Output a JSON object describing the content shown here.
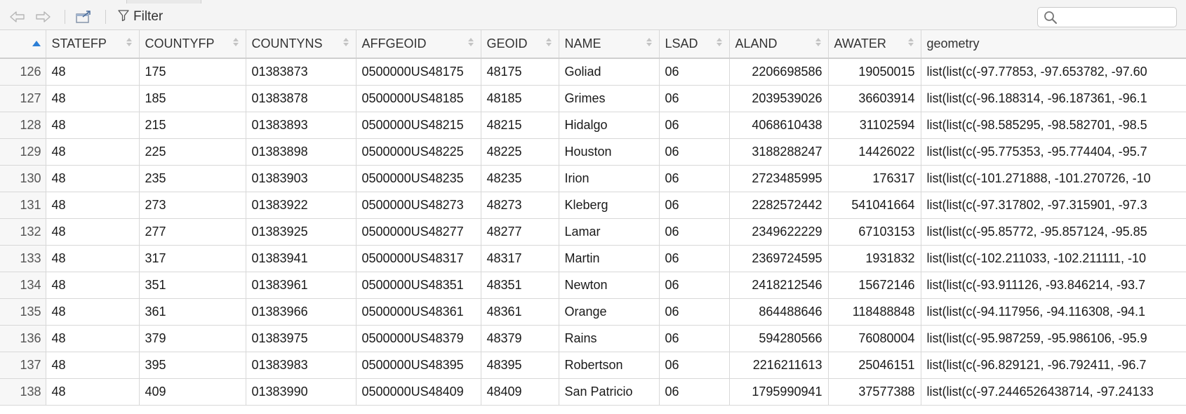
{
  "toolbar": {
    "back_icon": "arrow-left-icon",
    "forward_icon": "arrow-right-icon",
    "popout_icon": "popout-window-icon",
    "filter_label": "Filter",
    "search_placeholder": ""
  },
  "table": {
    "columns": [
      "STATEFP",
      "COUNTYFP",
      "COUNTYNS",
      "AFFGEOID",
      "GEOID",
      "NAME",
      "LSAD",
      "ALAND",
      "AWATER",
      "geometry"
    ],
    "rows": [
      [
        "126",
        "48",
        "175",
        "01383873",
        "0500000US48175",
        "48175",
        "Goliad",
        "06",
        "2206698586",
        "19050015",
        "list(list(c(-97.77853, -97.653782, -97.60"
      ],
      [
        "127",
        "48",
        "185",
        "01383878",
        "0500000US48185",
        "48185",
        "Grimes",
        "06",
        "2039539026",
        "36603914",
        "list(list(c(-96.188314, -96.187361, -96.1"
      ],
      [
        "128",
        "48",
        "215",
        "01383893",
        "0500000US48215",
        "48215",
        "Hidalgo",
        "06",
        "4068610438",
        "31102594",
        "list(list(c(-98.585295, -98.582701, -98.5"
      ],
      [
        "129",
        "48",
        "225",
        "01383898",
        "0500000US48225",
        "48225",
        "Houston",
        "06",
        "3188288247",
        "14426022",
        "list(list(c(-95.775353, -95.774404, -95.7"
      ],
      [
        "130",
        "48",
        "235",
        "01383903",
        "0500000US48235",
        "48235",
        "Irion",
        "06",
        "2723485995",
        "176317",
        "list(list(c(-101.271888, -101.270726, -10"
      ],
      [
        "131",
        "48",
        "273",
        "01383922",
        "0500000US48273",
        "48273",
        "Kleberg",
        "06",
        "2282572442",
        "541041664",
        "list(list(c(-97.317802, -97.315901, -97.3"
      ],
      [
        "132",
        "48",
        "277",
        "01383925",
        "0500000US48277",
        "48277",
        "Lamar",
        "06",
        "2349622229",
        "67103153",
        "list(list(c(-95.85772, -95.857124, -95.85"
      ],
      [
        "133",
        "48",
        "317",
        "01383941",
        "0500000US48317",
        "48317",
        "Martin",
        "06",
        "2369724595",
        "1931832",
        "list(list(c(-102.211033, -102.211111, -10"
      ],
      [
        "134",
        "48",
        "351",
        "01383961",
        "0500000US48351",
        "48351",
        "Newton",
        "06",
        "2418212546",
        "15672146",
        "list(list(c(-93.911126, -93.846214, -93.7"
      ],
      [
        "135",
        "48",
        "361",
        "01383966",
        "0500000US48361",
        "48361",
        "Orange",
        "06",
        "864488646",
        "118488848",
        "list(list(c(-94.117956, -94.116308, -94.1"
      ],
      [
        "136",
        "48",
        "379",
        "01383975",
        "0500000US48379",
        "48379",
        "Rains",
        "06",
        "594280566",
        "76080004",
        "list(list(c(-95.987259, -95.986106, -95.9"
      ],
      [
        "137",
        "48",
        "395",
        "01383983",
        "0500000US48395",
        "48395",
        "Robertson",
        "06",
        "2216211613",
        "25046151",
        "list(list(c(-96.829121, -96.792411, -96.7"
      ],
      [
        "138",
        "48",
        "409",
        "01383990",
        "0500000US48409",
        "48409",
        "San Patricio",
        "06",
        "1795990941",
        "37577388",
        "list(list(c(-97.2446526438714, -97.24133"
      ]
    ],
    "numeric_columns": [
      8,
      9
    ],
    "sort_color": "#2c7fd6"
  }
}
